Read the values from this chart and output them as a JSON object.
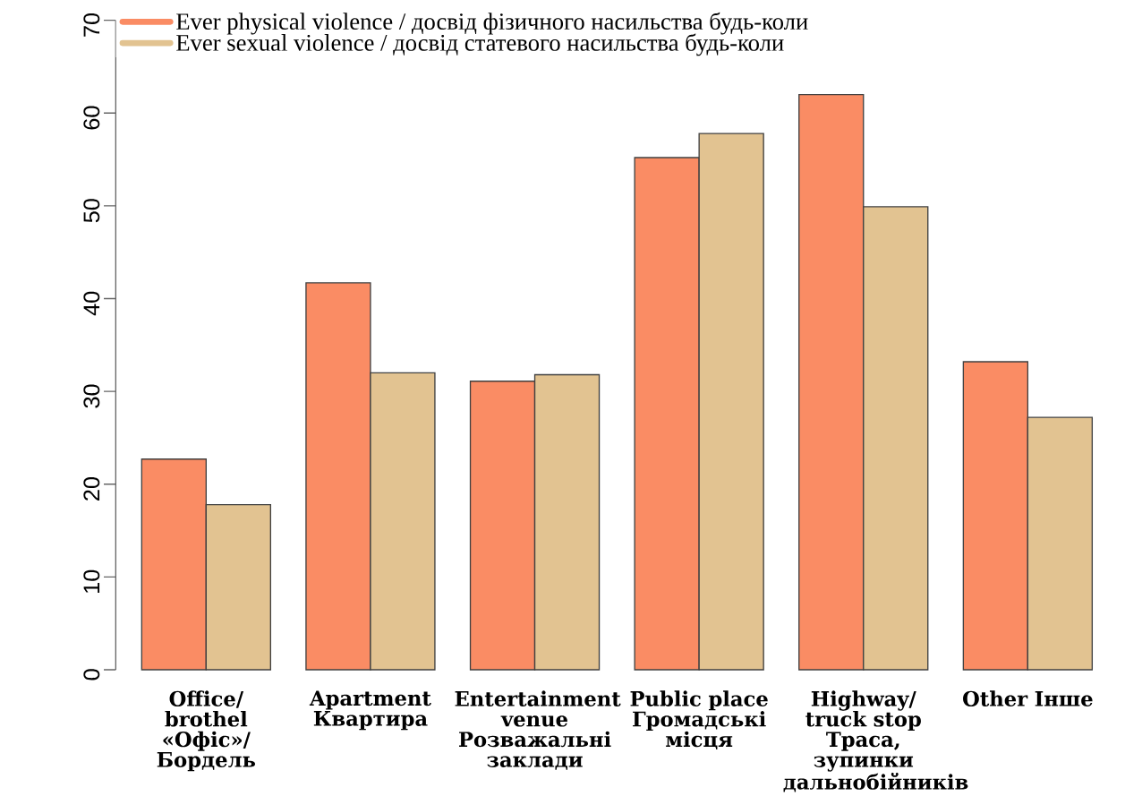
{
  "chart_data": {
    "type": "bar",
    "categories": [
      "Office/ brothel «Офіс»/ Бордель",
      "Apartment Квартира",
      "Entertainment venue Розважальні заклади",
      "Public place Громадські місця",
      "Highway/ truck stop Траса, зупинки дальнобійників",
      "Other Інше"
    ],
    "series": [
      {
        "name": "Ever physical violence / досвід фізичного насильства будь-коли",
        "color": "#fa8c64",
        "values": [
          22.7,
          41.7,
          31.1,
          55.2,
          62,
          33.2
        ]
      },
      {
        "name": "Ever sexual violence / досвід статевого насильства будь-коли",
        "color": "#e2c391",
        "values": [
          17.8,
          32.0,
          31.8,
          57.8,
          49.9,
          27.2
        ]
      }
    ],
    "ylim": [
      0,
      70
    ],
    "yticks": [
      0,
      10,
      20,
      30,
      40,
      50,
      60,
      70
    ],
    "legend": "top left",
    "grid": false
  }
}
